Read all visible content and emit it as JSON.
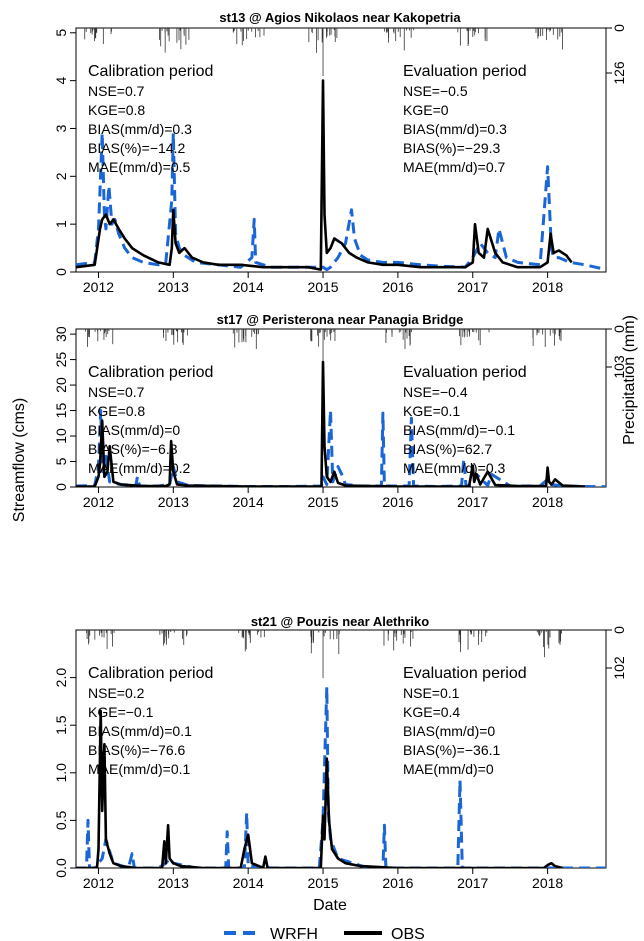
{
  "figure": {
    "ylabel_left": "Streamflow (cms)",
    "ylabel_right": "Precipitation (mm)",
    "xlabel": "Date",
    "legend": [
      {
        "label": "WRFH",
        "color": "#1a66d6",
        "style": "dashed"
      },
      {
        "label": "OBS",
        "color": "#000000",
        "style": "solid"
      }
    ]
  },
  "chart_data": [
    {
      "type": "line",
      "title": "st13 @ Agios Nikolaos near Kakopetria",
      "xlim": [
        2011.7,
        2018.78
      ],
      "ylim": [
        0,
        5.1
      ],
      "yticks": [
        "0",
        "1",
        "2",
        "3",
        "4",
        "5"
      ],
      "ytick_values": [
        0,
        1,
        2,
        3,
        4,
        5
      ],
      "xticks": [
        "2012",
        "2013",
        "2014",
        "2015",
        "2016",
        "2017",
        "2018"
      ],
      "xtick_values": [
        2012,
        2013,
        2014,
        2015,
        2016,
        2017,
        2018
      ],
      "precip_ticks": [
        "0",
        "126"
      ],
      "precip_max": 126,
      "calibration": {
        "heading": "Calibration period",
        "stats": [
          "NSE=0.7",
          "KGE=0.8",
          "BIAS(mm/d)=0.3",
          "BIAS(%)=−14.2",
          "MAE(mm/d)=0.5"
        ]
      },
      "evaluation": {
        "heading": "Evaluation period",
        "stats": [
          "NSE=−0.5",
          "KGE=0",
          "BIAS(mm/d)=0.3",
          "BIAS(%)=−29.3",
          "MAE(mm/d)=0.7"
        ]
      },
      "series": [
        {
          "name": "WRFH",
          "color": "#1a66d6",
          "x": [
            2011.7,
            2011.95,
            2012.0,
            2012.05,
            2012.08,
            2012.1,
            2012.14,
            2012.18,
            2012.22,
            2012.27,
            2012.35,
            2012.45,
            2012.6,
            2012.8,
            2012.9,
            2012.98,
            2013.0,
            2013.03,
            2013.08,
            2013.15,
            2013.3,
            2013.6,
            2013.9,
            2014.05,
            2014.08,
            2014.1,
            2014.3,
            2014.6,
            2014.9,
            2015.0,
            2015.05,
            2015.1,
            2015.2,
            2015.3,
            2015.38,
            2015.42,
            2015.5,
            2015.6,
            2015.8,
            2016.0,
            2016.3,
            2016.6,
            2016.9,
            2017.0,
            2017.1,
            2017.2,
            2017.3,
            2017.35,
            2017.45,
            2017.6,
            2017.9,
            2018.0,
            2018.05,
            2018.08,
            2018.15,
            2018.3,
            2018.5,
            2018.78
          ],
          "y": [
            0.15,
            0.2,
            0.9,
            2.9,
            1.2,
            0.9,
            1.8,
            1.0,
            1.1,
            0.8,
            0.5,
            0.3,
            0.2,
            0.15,
            0.2,
            1.5,
            2.9,
            0.8,
            0.5,
            0.35,
            0.2,
            0.15,
            0.1,
            0.3,
            1.1,
            0.2,
            0.1,
            0.1,
            0.1,
            0.1,
            0.05,
            0.1,
            0.3,
            0.6,
            1.3,
            0.7,
            0.35,
            0.25,
            0.2,
            0.2,
            0.15,
            0.12,
            0.1,
            0.3,
            0.6,
            0.4,
            0.3,
            0.9,
            0.3,
            0.2,
            0.15,
            2.2,
            0.5,
            0.3,
            0.3,
            0.2,
            0.15,
            0.05
          ]
        },
        {
          "name": "OBS",
          "color": "#000000",
          "x": [
            2011.7,
            2011.95,
            2012.02,
            2012.05,
            2012.1,
            2012.15,
            2012.2,
            2012.27,
            2012.35,
            2012.45,
            2012.6,
            2012.8,
            2012.95,
            2012.98,
            2013.0,
            2013.03,
            2013.08,
            2013.15,
            2013.25,
            2013.4,
            2013.6,
            2013.9,
            2014.2,
            2014.5,
            2014.8,
            2014.97,
            2015.0,
            2015.02,
            2015.05,
            2015.1,
            2015.15,
            2015.25,
            2015.35,
            2015.45,
            2015.6,
            2015.8,
            2016.0,
            2016.3,
            2016.6,
            2016.9,
            2017.0,
            2017.03,
            2017.08,
            2017.15,
            2017.2,
            2017.3,
            2017.4,
            2017.6,
            2017.9,
            2018.0,
            2018.04,
            2018.08,
            2018.15,
            2018.25,
            2018.32
          ],
          "y": [
            0.1,
            0.15,
            0.9,
            1.1,
            1.2,
            1.0,
            1.1,
            0.9,
            0.7,
            0.5,
            0.35,
            0.2,
            0.15,
            0.5,
            1.3,
            0.6,
            0.4,
            0.5,
            0.3,
            0.2,
            0.15,
            0.15,
            0.1,
            0.1,
            0.1,
            0.05,
            4.0,
            1.2,
            0.4,
            0.5,
            0.7,
            0.6,
            0.4,
            0.3,
            0.2,
            0.15,
            0.15,
            0.1,
            0.1,
            0.1,
            0.2,
            1.0,
            0.4,
            0.3,
            0.9,
            0.4,
            0.2,
            0.1,
            0.1,
            0.2,
            0.8,
            0.4,
            0.45,
            0.35,
            0.2
          ]
        }
      ]
    },
    {
      "type": "line",
      "title": "st17 @ Peristerona near Panagia Bridge",
      "xlim": [
        2011.7,
        2018.78
      ],
      "ylim": [
        0,
        31
      ],
      "yticks": [
        "0",
        "5",
        "10",
        "15",
        "20",
        "25",
        "30"
      ],
      "ytick_values": [
        0,
        5,
        10,
        15,
        20,
        25,
        30
      ],
      "xticks": [
        "2012",
        "2013",
        "2014",
        "2015",
        "2016",
        "2017",
        "2018"
      ],
      "xtick_values": [
        2012,
        2013,
        2014,
        2015,
        2016,
        2017,
        2018
      ],
      "precip_ticks": [
        "0",
        "103"
      ],
      "precip_max": 103,
      "calibration": {
        "heading": "Calibration period",
        "stats": [
          "NSE=0.7",
          "KGE=0.8",
          "BIAS(mm/d)=0",
          "BIAS(%)=−6.3",
          "MAE(mm/d)=0.2"
        ]
      },
      "evaluation": {
        "heading": "Evaluation period",
        "stats": [
          "NSE=−0.4",
          "KGE=0.1",
          "BIAS(mm/d)=−0.1",
          "BIAS(%)=62.7",
          "MAE(mm/d)=0.3"
        ]
      },
      "series": [
        {
          "name": "WRFH",
          "color": "#1a66d6",
          "x": [
            2011.7,
            2011.95,
            2012.0,
            2012.03,
            2012.06,
            2012.1,
            2012.15,
            2012.2,
            2012.3,
            2012.5,
            2012.52,
            2012.55,
            2012.8,
            2012.95,
            2013.0,
            2013.05,
            2013.2,
            2013.6,
            2014.0,
            2014.5,
            2014.98,
            2015.0,
            2015.05,
            2015.1,
            2015.13,
            2015.2,
            2015.25,
            2015.3,
            2015.5,
            2015.78,
            2015.8,
            2015.82,
            2016.0,
            2016.15,
            2016.18,
            2016.21,
            2016.5,
            2016.85,
            2016.88,
            2016.91,
            2017.0,
            2017.05,
            2017.2,
            2017.25,
            2017.5,
            2017.9,
            2018.0,
            2018.05,
            2018.2,
            2018.5,
            2018.78
          ],
          "y": [
            0.2,
            0.3,
            4.0,
            15.0,
            3.0,
            6.0,
            1.0,
            0.8,
            0.5,
            0.3,
            2.0,
            0.2,
            0.2,
            0.5,
            4.0,
            1.0,
            0.3,
            0.2,
            0.1,
            0.1,
            0.2,
            2.0,
            0.5,
            15.0,
            1.0,
            4.0,
            2.5,
            0.5,
            0.2,
            0.2,
            14.5,
            0.2,
            0.2,
            0.2,
            13.5,
            0.2,
            0.1,
            0.2,
            5.5,
            0.2,
            0.5,
            2.5,
            0.3,
            2.5,
            0.2,
            0.2,
            1.5,
            0.5,
            0.2,
            0.1,
            0.05
          ]
        },
        {
          "name": "OBS",
          "color": "#000000",
          "x": [
            2011.7,
            2011.95,
            2012.0,
            2012.02,
            2012.05,
            2012.08,
            2012.12,
            2012.15,
            2012.2,
            2012.3,
            2012.6,
            2012.9,
            2012.95,
            2012.97,
            2013.0,
            2013.05,
            2013.2,
            2013.6,
            2014.0,
            2014.5,
            2014.98,
            2015.0,
            2015.02,
            2015.05,
            2015.1,
            2015.15,
            2015.2,
            2015.3,
            2015.6,
            2016.0,
            2016.5,
            2016.95,
            2017.0,
            2017.02,
            2017.05,
            2017.1,
            2017.2,
            2017.3,
            2017.6,
            2017.98,
            2018.0,
            2018.02,
            2018.05,
            2018.1,
            2018.2,
            2018.5
          ],
          "y": [
            0.1,
            0.1,
            2.0,
            4.5,
            13.0,
            2.0,
            3.0,
            8.0,
            1.0,
            0.5,
            0.2,
            0.2,
            0.5,
            9.0,
            3.0,
            0.5,
            0.3,
            0.2,
            0.1,
            0.1,
            0.1,
            24.5,
            8.0,
            2.0,
            1.0,
            3.0,
            0.8,
            0.3,
            0.2,
            0.1,
            0.1,
            0.1,
            4.2,
            1.0,
            2.5,
            0.5,
            3.0,
            0.4,
            0.2,
            0.2,
            3.8,
            1.0,
            0.5,
            1.5,
            0.3,
            0.1
          ]
        }
      ]
    },
    {
      "type": "line",
      "title": "st21 @ Pouzis near Alethriko",
      "xlim": [
        2011.7,
        2018.78
      ],
      "ylim": [
        0,
        2.5
      ],
      "yticks": [
        "0.0",
        "0.5",
        "1.0",
        "1.5",
        "2.0"
      ],
      "ytick_values": [
        0,
        0.5,
        1.0,
        1.5,
        2.0
      ],
      "xticks": [
        "2012",
        "2013",
        "2014",
        "2015",
        "2016",
        "2017",
        "2018"
      ],
      "xtick_values": [
        2012,
        2013,
        2014,
        2015,
        2016,
        2017,
        2018
      ],
      "precip_ticks": [
        "0",
        "102"
      ],
      "precip_max": 102,
      "calibration": {
        "heading": "Calibration period",
        "stats": [
          "NSE=0.2",
          "KGE=−0.1",
          "BIAS(mm/d)=0.1",
          "BIAS(%)=−76.6",
          "MAE(mm/d)=0.1"
        ]
      },
      "evaluation": {
        "heading": "Evaluation period",
        "stats": [
          "NSE=0.1",
          "KGE=0.4",
          "BIAS(mm/d)=0",
          "BIAS(%)=−36.1",
          "MAE(mm/d)=0"
        ]
      },
      "series": [
        {
          "name": "WRFH",
          "color": "#1a66d6",
          "x": [
            2011.7,
            2011.84,
            2011.86,
            2011.88,
            2011.95,
            2012.0,
            2012.05,
            2012.1,
            2012.2,
            2012.4,
            2012.45,
            2012.48,
            2012.8,
            2012.9,
            2012.95,
            2013.0,
            2013.3,
            2013.7,
            2013.72,
            2013.74,
            2013.95,
            2013.98,
            2014.0,
            2014.3,
            2014.95,
            2015.0,
            2015.05,
            2015.07,
            2015.1,
            2015.2,
            2015.4,
            2015.6,
            2015.8,
            2015.82,
            2015.84,
            2016.0,
            2016.5,
            2016.8,
            2016.83,
            2016.86,
            2017.0,
            2017.5,
            2018.0,
            2018.5,
            2018.78
          ],
          "y": [
            0.0,
            0.0,
            0.5,
            0.0,
            0.0,
            0.05,
            0.1,
            0.3,
            0.05,
            0.0,
            0.15,
            0.0,
            0.0,
            0.05,
            0.1,
            0.05,
            0.0,
            0.0,
            0.38,
            0.0,
            0.0,
            0.58,
            0.02,
            0.0,
            0.0,
            0.5,
            1.9,
            0.6,
            0.3,
            0.1,
            0.05,
            0.0,
            0.0,
            0.45,
            0.0,
            0.0,
            0.0,
            0.0,
            0.92,
            0.0,
            0.0,
            0.0,
            0.0,
            0.0,
            0.0
          ]
        },
        {
          "name": "OBS",
          "color": "#000000",
          "x": [
            2011.7,
            2011.98,
            2012.0,
            2012.03,
            2012.05,
            2012.08,
            2012.1,
            2012.15,
            2012.2,
            2012.3,
            2012.5,
            2012.85,
            2012.88,
            2012.9,
            2012.93,
            2012.95,
            2013.0,
            2013.1,
            2013.4,
            2013.9,
            2013.95,
            2014.0,
            2014.05,
            2014.2,
            2014.23,
            2014.26,
            2014.5,
            2014.97,
            2015.0,
            2015.02,
            2015.05,
            2015.08,
            2015.12,
            2015.2,
            2015.3,
            2015.5,
            2016.0,
            2016.5,
            2017.0,
            2017.5,
            2017.95,
            2018.0,
            2018.05,
            2018.1,
            2018.2
          ],
          "y": [
            0.0,
            0.0,
            0.2,
            1.65,
            0.6,
            1.3,
            0.3,
            0.15,
            0.05,
            0.02,
            0.0,
            0.0,
            0.28,
            0.05,
            0.45,
            0.1,
            0.05,
            0.02,
            0.0,
            0.0,
            0.2,
            0.35,
            0.05,
            0.0,
            0.12,
            0.0,
            0.0,
            0.0,
            0.55,
            0.3,
            1.15,
            0.5,
            0.2,
            0.1,
            0.05,
            0.02,
            0.0,
            0.0,
            0.0,
            0.0,
            0.0,
            0.03,
            0.05,
            0.02,
            0.0
          ]
        }
      ]
    }
  ]
}
